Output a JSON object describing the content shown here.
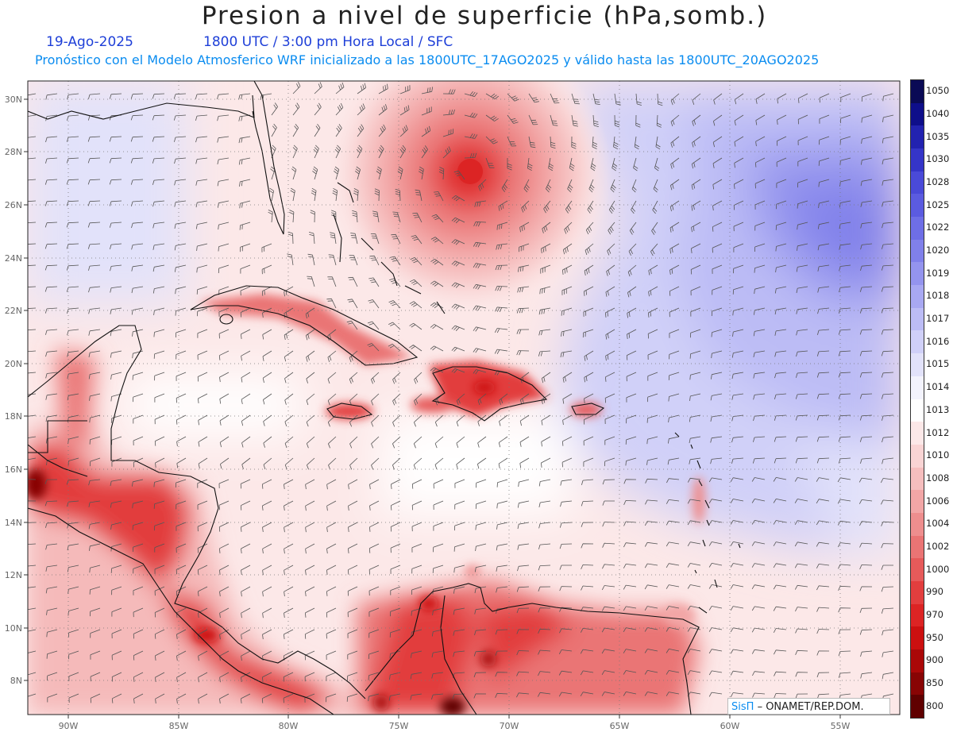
{
  "header": {
    "title": "Presion a nivel de superficie (hPa,somb.)",
    "date": "19-Ago-2025",
    "time": "1800 UTC / 3:00 pm Hora Local / SFC",
    "model_line": "Pronóstico con el Modelo Atmosferico WRF inicializado a las 1800UTC_17AGO2025 y válido hasta las  1800UTC_20AGO2025"
  },
  "map": {
    "lat_labels": [
      "30N",
      "28N",
      "26N",
      "24N",
      "22N",
      "20N",
      "18N",
      "16N",
      "14N",
      "12N",
      "10N",
      "8N"
    ],
    "lon_labels": [
      "90W",
      "85W",
      "80W",
      "75W",
      "70W",
      "65W",
      "60W",
      "55W"
    ]
  },
  "colorbar": {
    "levels": [
      "1050",
      "1040",
      "1035",
      "1030",
      "1028",
      "1025",
      "1022",
      "1020",
      "1019",
      "1018",
      "1017",
      "1016",
      "1015",
      "1014",
      "1013",
      "1012",
      "1010",
      "1008",
      "1006",
      "1004",
      "1002",
      "1000",
      "990",
      "970",
      "950",
      "900",
      "850",
      "800"
    ],
    "colors": [
      "#0a0a55",
      "#0e0e8a",
      "#2222b0",
      "#3535c8",
      "#4a4ad8",
      "#5b5be0",
      "#6e6ee6",
      "#8080ea",
      "#9494ee",
      "#a8a8f2",
      "#bcbcf5",
      "#d0d0f8",
      "#e2e2fa",
      "#f3f3fd",
      "#ffffff",
      "#fce8e8",
      "#f9d4d4",
      "#f6bebe",
      "#f2a6a6",
      "#ee8e8e",
      "#ea7474",
      "#e65a5a",
      "#e23e3e",
      "#dc2424",
      "#cc1010",
      "#aa0808",
      "#880404",
      "#600000"
    ]
  },
  "credit": {
    "logo": "SisΠ",
    "text": "ONAMET/REP.DOM."
  }
}
